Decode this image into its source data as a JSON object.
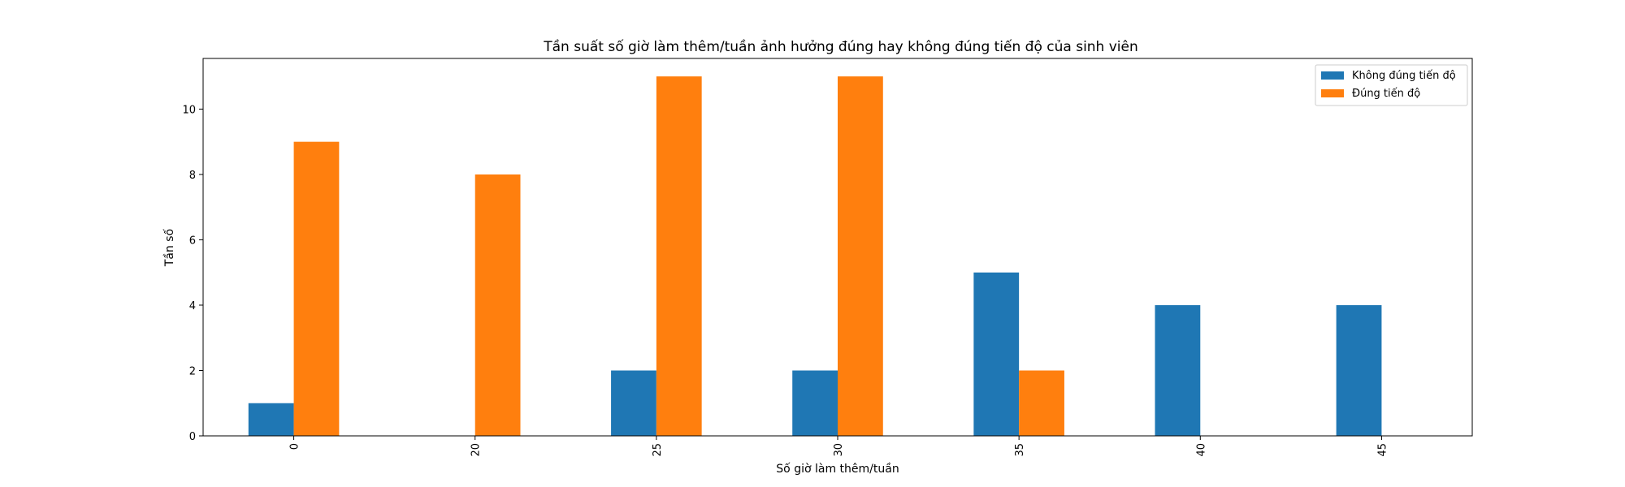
{
  "chart_data": {
    "type": "bar",
    "title": "Tần suất số giờ làm thêm/tuần ảnh hưởng đúng hay không đúng tiến độ của sinh viên",
    "xlabel": "Số giờ làm thêm/tuần",
    "ylabel": "Tần số",
    "categories": [
      "0",
      "20",
      "25",
      "30",
      "35",
      "40",
      "45"
    ],
    "series": [
      {
        "name": "Không đúng tiến độ",
        "color": "#1f77b4",
        "values": [
          1,
          0,
          2,
          2,
          5,
          4,
          4
        ]
      },
      {
        "name": "Đúng tiến độ",
        "color": "#ff7f0e",
        "values": [
          9,
          8,
          11,
          11,
          2,
          0,
          0
        ]
      }
    ],
    "ylim": [
      0,
      11.55
    ],
    "yticks": [
      0,
      2,
      4,
      6,
      8,
      10
    ],
    "grid": false,
    "legend_position": "top-right",
    "xtick_rotation": "vertical"
  }
}
